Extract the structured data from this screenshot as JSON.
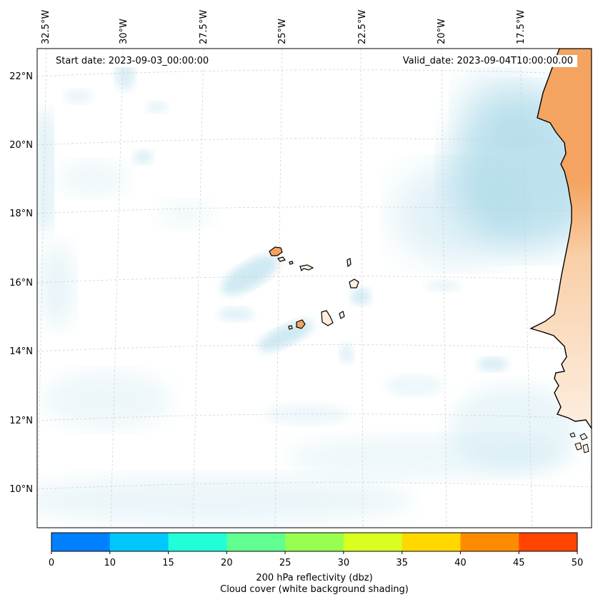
{
  "map": {
    "lon_labels": [
      "32.5°W",
      "30°W",
      "27.5°W",
      "25°W",
      "22.5°W",
      "20°W",
      "17.5°W"
    ],
    "lat_labels": [
      "22°N",
      "20°N",
      "18°N",
      "16°N",
      "14°N",
      "12°N",
      "10°N"
    ],
    "start_date": "Start date: 2023-09-03_00:00:00",
    "valid_date": "Valid_date: 2023-09-04T10:00:00.00",
    "land_color": "#f4a460",
    "cloud_color": "#a8d8e8",
    "coastline_color": "#000000",
    "gridline_color": "#cccccc"
  },
  "colorbar": {
    "ticks": [
      "0",
      "10",
      "15",
      "20",
      "25",
      "30",
      "35",
      "40",
      "45",
      "50"
    ],
    "colors": [
      "#0080ff",
      "#00c8ff",
      "#20ffd8",
      "#60ff90",
      "#98ff50",
      "#d8ff20",
      "#ffd800",
      "#ff8c00",
      "#ff4500"
    ],
    "label": "200 hPa reflectivity (dbz)",
    "sublabel": "Cloud cover (white background shading)"
  }
}
